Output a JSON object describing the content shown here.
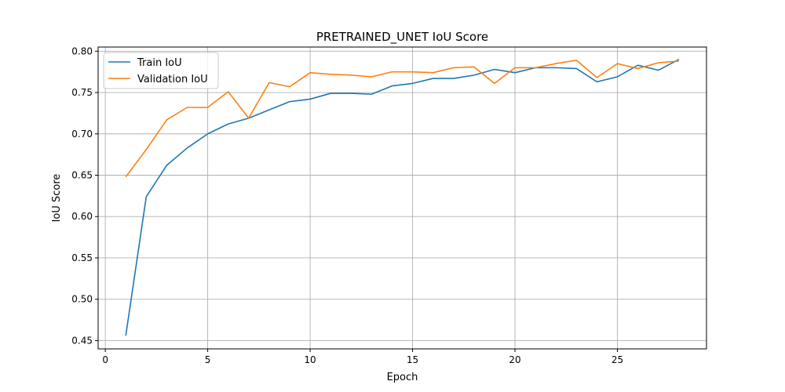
{
  "chart_data": {
    "type": "line",
    "title": "PRETRAINED_UNET IoU Score",
    "xlabel": "Epoch",
    "ylabel": "IoU Score",
    "xlim": [
      -0.35,
      29.35
    ],
    "ylim": [
      0.44,
      0.805
    ],
    "xticks": [
      0,
      5,
      10,
      15,
      20,
      25
    ],
    "yticks": [
      0.45,
      0.5,
      0.55,
      0.6,
      0.65,
      0.7,
      0.75,
      0.8
    ],
    "grid": true,
    "legend_position": "upper-left",
    "x": [
      1,
      2,
      3,
      4,
      5,
      6,
      7,
      8,
      9,
      10,
      11,
      12,
      13,
      14,
      15,
      16,
      17,
      18,
      19,
      20,
      21,
      22,
      23,
      24,
      25,
      26,
      27,
      28
    ],
    "series": [
      {
        "name": "Train IoU",
        "color": "#1f77b4",
        "values": [
          0.456,
          0.624,
          0.662,
          0.683,
          0.7,
          0.712,
          0.719,
          0.729,
          0.739,
          0.742,
          0.749,
          0.749,
          0.748,
          0.758,
          0.761,
          0.767,
          0.767,
          0.771,
          0.778,
          0.774,
          0.78,
          0.78,
          0.779,
          0.763,
          0.769,
          0.783,
          0.777,
          0.79
        ]
      },
      {
        "name": "Validation IoU",
        "color": "#ff7f0e",
        "values": [
          0.648,
          0.681,
          0.717,
          0.732,
          0.732,
          0.751,
          0.719,
          0.762,
          0.757,
          0.774,
          0.772,
          0.771,
          0.769,
          0.775,
          0.775,
          0.774,
          0.78,
          0.781,
          0.761,
          0.78,
          0.78,
          0.785,
          0.789,
          0.768,
          0.785,
          0.779,
          0.786,
          0.788
        ]
      }
    ]
  }
}
